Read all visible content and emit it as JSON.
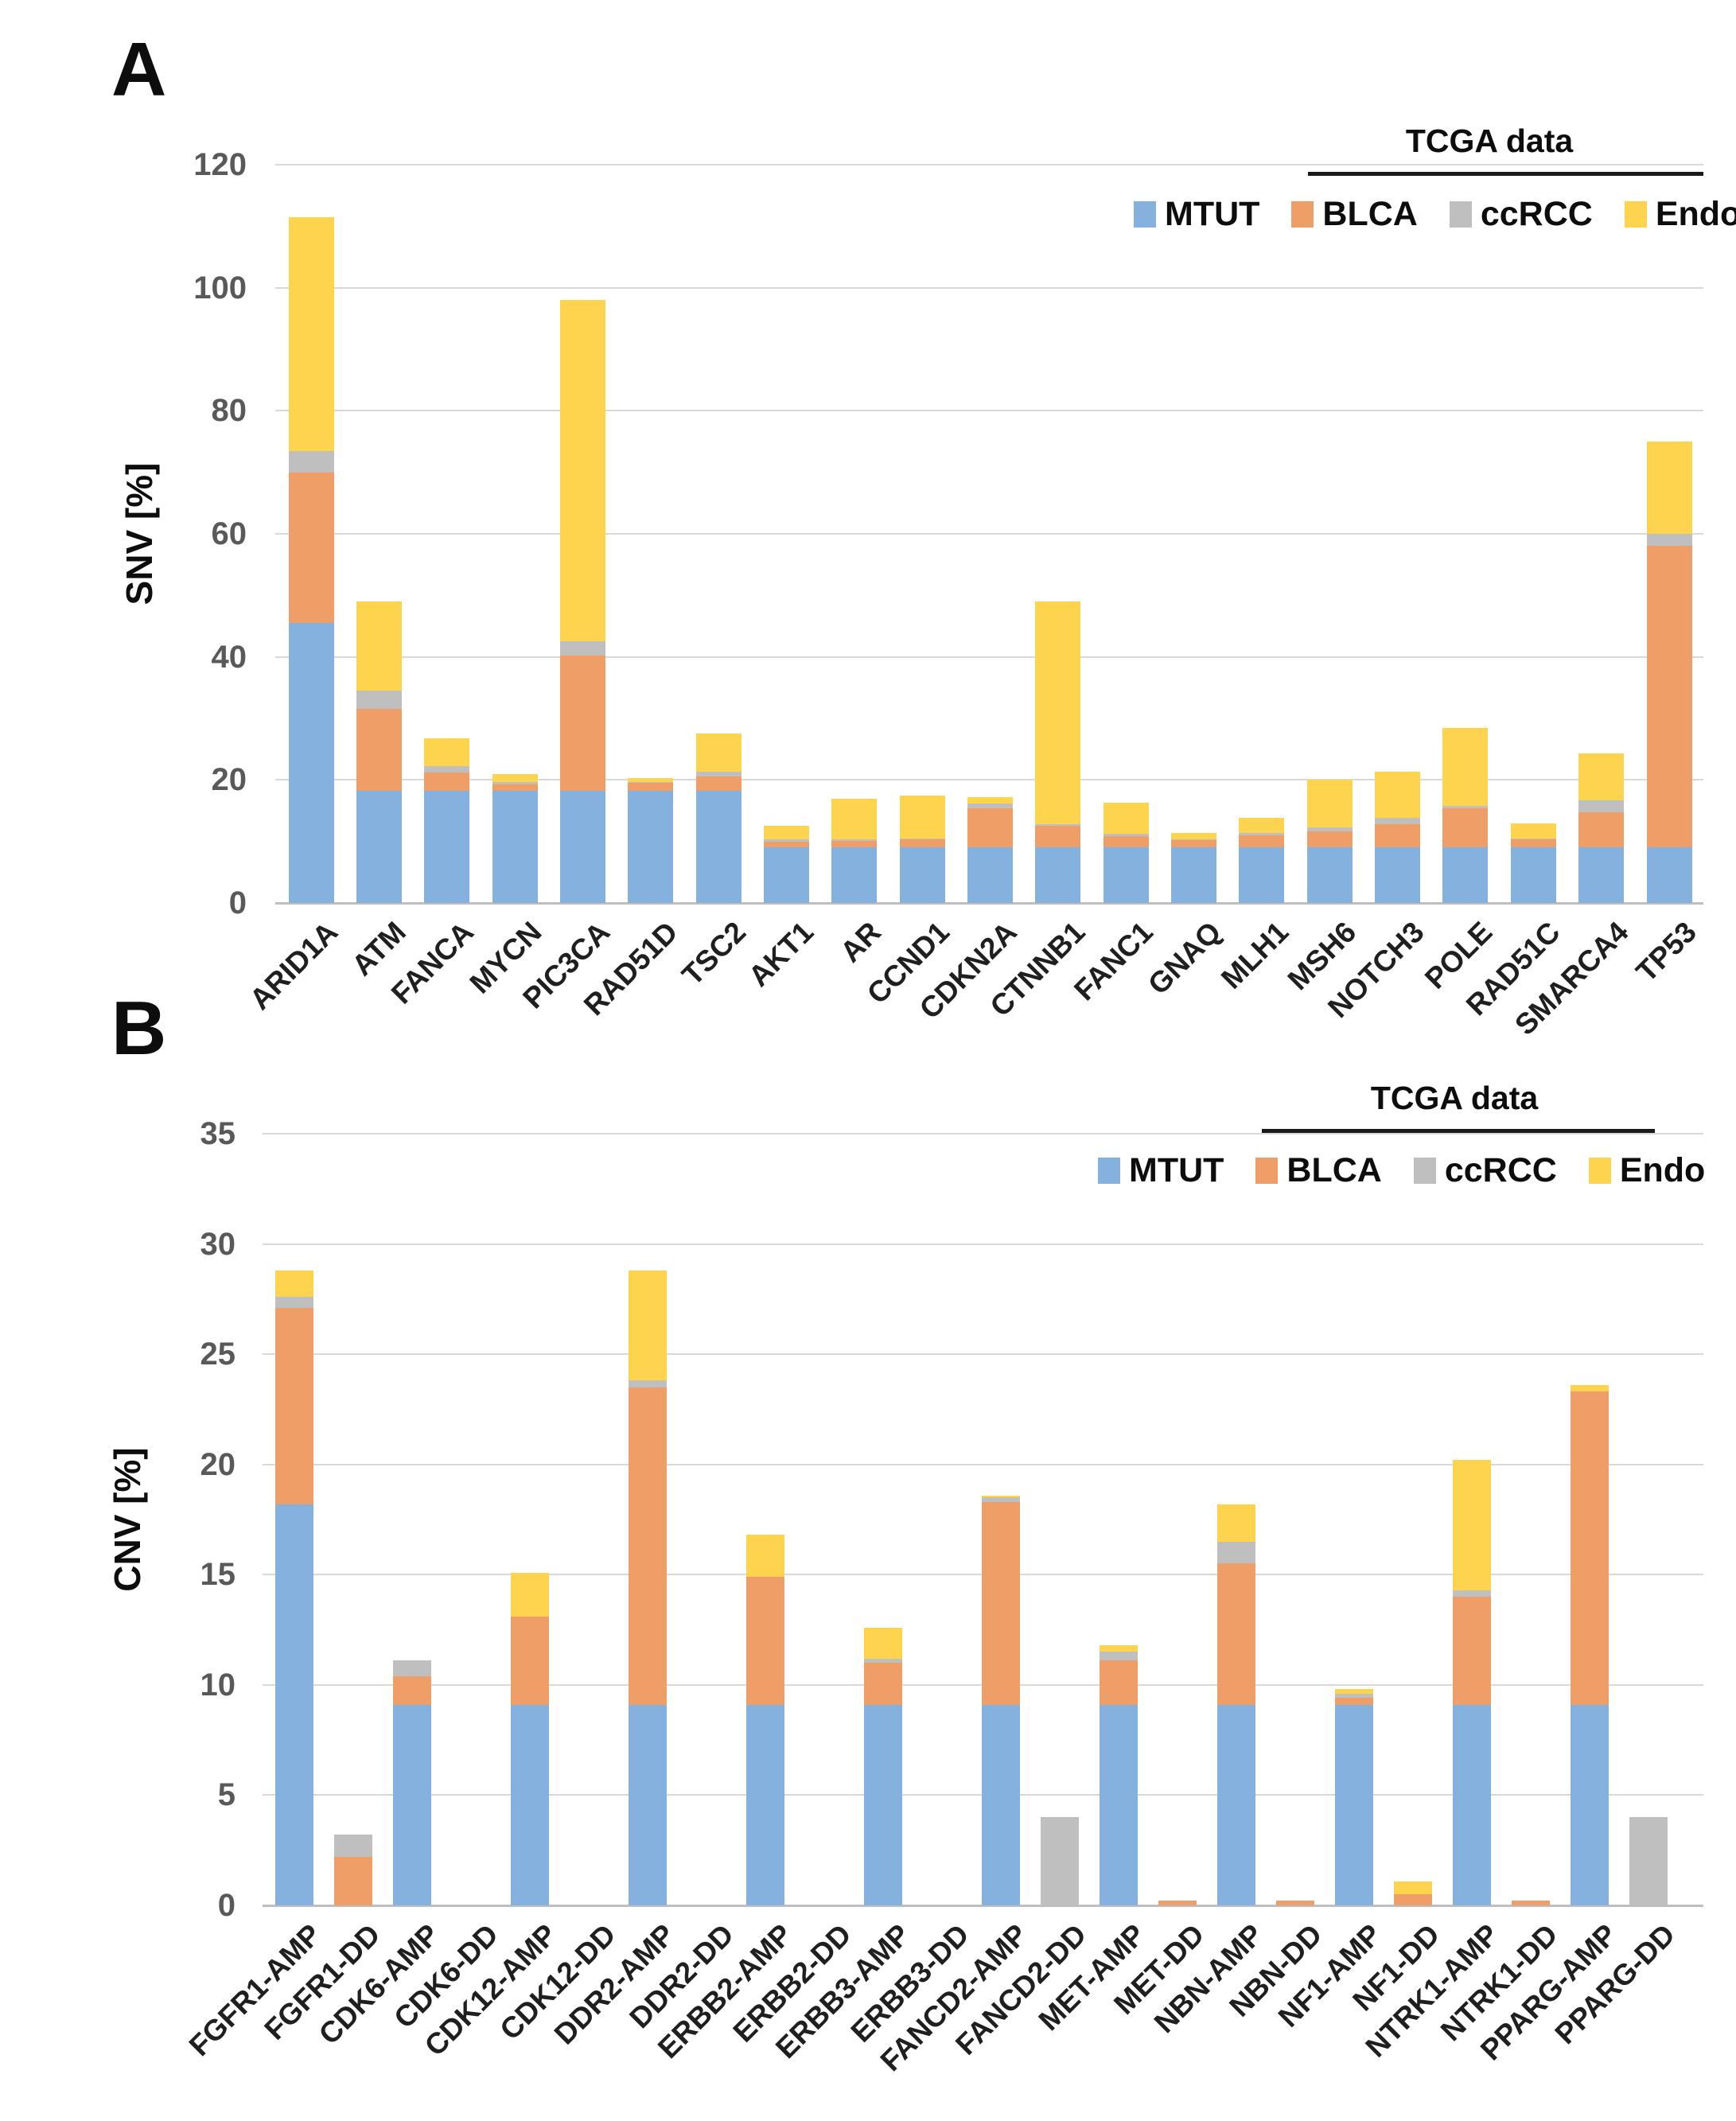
{
  "figure": {
    "background": "#FFFFFF"
  },
  "colors": {
    "mtut_blue": "#85B1DE",
    "blca_orange": "#F09E68",
    "ccrcc_gray": "#BFBFBF",
    "endo_yellow": "#FED34D",
    "gridline": "#D9D9D9",
    "axis_line": "#BFBFBF",
    "tick_text": "#595959",
    "label_text": "#1F1F1F"
  },
  "legend": {
    "group_label": "TCGA data",
    "items": [
      {
        "name": "MTUT",
        "color": "#85B1DE"
      },
      {
        "name": "BLCA",
        "color": "#F09E68"
      },
      {
        "name": "ccRCC",
        "color": "#BFBFBF"
      },
      {
        "name": "Endo",
        "color": "#FED34D"
      }
    ]
  },
  "chart_data": [
    {
      "type": "bar",
      "stacked": true,
      "panel_label": "A",
      "title": "",
      "xlabel": "",
      "ylabel": "SNV [%]",
      "ylim": [
        0,
        120
      ],
      "yticks": [
        120,
        100,
        80,
        60,
        40,
        20,
        0
      ],
      "grid": true,
      "legend_position": "top-right",
      "categories": [
        "ARID1A",
        "ATM",
        "FANCA",
        "MYCN",
        "PIC3CA",
        "RAD51D",
        "TSC2",
        "AKT1",
        "AR",
        "CCND1",
        "CDKN2A",
        "CTNNB1",
        "FANC1",
        "GNAQ",
        "MLH1",
        "MSH6",
        "NOTCH3",
        "POLE",
        "RAD51C",
        "SMARCA4",
        "TP53"
      ],
      "series": [
        {
          "name": "MTUT",
          "color": "#85B1DE",
          "values": [
            45.5,
            18.2,
            18.2,
            18.2,
            18.2,
            18.2,
            18.2,
            9.1,
            9.1,
            9.1,
            9.1,
            9.1,
            9.1,
            9.1,
            9.1,
            9.1,
            9.1,
            9.1,
            9.1,
            9.1,
            9.1
          ]
        },
        {
          "name": "BLCA",
          "color": "#F09E68",
          "values": [
            24.5,
            13.3,
            3.0,
            1.1,
            22.0,
            1.3,
            2.3,
            0.9,
            1.0,
            1.3,
            6.3,
            3.4,
            1.8,
            1.2,
            1.9,
            2.6,
            3.7,
            6.3,
            1.3,
            5.6,
            48.9
          ]
        },
        {
          "name": "ccRCC",
          "color": "#BFBFBF",
          "values": [
            3.5,
            3.0,
            1.1,
            0.3,
            2.3,
            0.2,
            0.9,
            0.4,
            0.2,
            0.1,
            0.8,
            0.3,
            0.4,
            0.1,
            0.4,
            0.6,
            1.0,
            0.4,
            0.1,
            2.0,
            2.0
          ]
        },
        {
          "name": "Endo",
          "color": "#FED34D",
          "values": [
            38.0,
            14.5,
            4.5,
            1.4,
            55.5,
            0.6,
            6.1,
            2.1,
            6.7,
            7.0,
            1.0,
            36.2,
            5.0,
            1.0,
            2.5,
            7.8,
            7.5,
            12.7,
            2.4,
            7.6,
            15.0
          ]
        }
      ]
    },
    {
      "type": "bar",
      "stacked": true,
      "panel_label": "B",
      "title": "",
      "xlabel": "",
      "ylabel": "CNV [%]",
      "ylim": [
        0,
        35
      ],
      "yticks": [
        35,
        30,
        25,
        20,
        15,
        10,
        5,
        0
      ],
      "grid": true,
      "legend_position": "top-right",
      "categories": [
        "FGFR1-AMP",
        "FGFR1-DD",
        "CDK6-AMP",
        "CDK6-DD",
        "CDK12-AMP",
        "CDK12-DD",
        "DDR2-AMP",
        "DDR2-DD",
        "ERBB2-AMP",
        "ERBB2-DD",
        "ERBB3-AMP",
        "ERBB3-DD",
        "FANCD2-AMP",
        "FANCD2-DD",
        "MET-AMP",
        "MET-DD",
        "NBN-AMP",
        "NBN-DD",
        "NF1-AMP",
        "NF1-DD",
        "NTRK1-AMP",
        "NTRK1-DD",
        "PPARG-AMP",
        "PPARG-DD"
      ],
      "series": [
        {
          "name": "MTUT",
          "color": "#85B1DE",
          "values": [
            18.2,
            0,
            9.1,
            0,
            9.1,
            0,
            9.1,
            0,
            9.1,
            0,
            9.1,
            0,
            9.1,
            0,
            9.1,
            0,
            9.1,
            0,
            9.1,
            0,
            9.1,
            0,
            9.1,
            0
          ]
        },
        {
          "name": "BLCA",
          "color": "#F09E68",
          "values": [
            8.9,
            2.2,
            1.3,
            0,
            4.0,
            0,
            14.4,
            0,
            5.8,
            0,
            1.9,
            0,
            9.2,
            0,
            2.0,
            0.2,
            6.4,
            0.2,
            0.3,
            0.5,
            4.9,
            0.2,
            14.2,
            0
          ]
        },
        {
          "name": "ccRCC",
          "color": "#BFBFBF",
          "values": [
            0.5,
            1.0,
            0.7,
            0,
            0,
            0,
            0.3,
            0,
            0,
            0,
            0.2,
            0,
            0.2,
            4.0,
            0.4,
            0,
            1.0,
            0,
            0.2,
            0,
            0.3,
            0,
            0,
            4.0
          ]
        },
        {
          "name": "Endo",
          "color": "#FED34D",
          "values": [
            1.2,
            0,
            0,
            0,
            2.0,
            0,
            5.0,
            0,
            1.9,
            0,
            1.4,
            0,
            0.1,
            0,
            0.3,
            0,
            1.7,
            0,
            0.2,
            0.6,
            5.9,
            0,
            0.3,
            0
          ]
        }
      ]
    }
  ]
}
